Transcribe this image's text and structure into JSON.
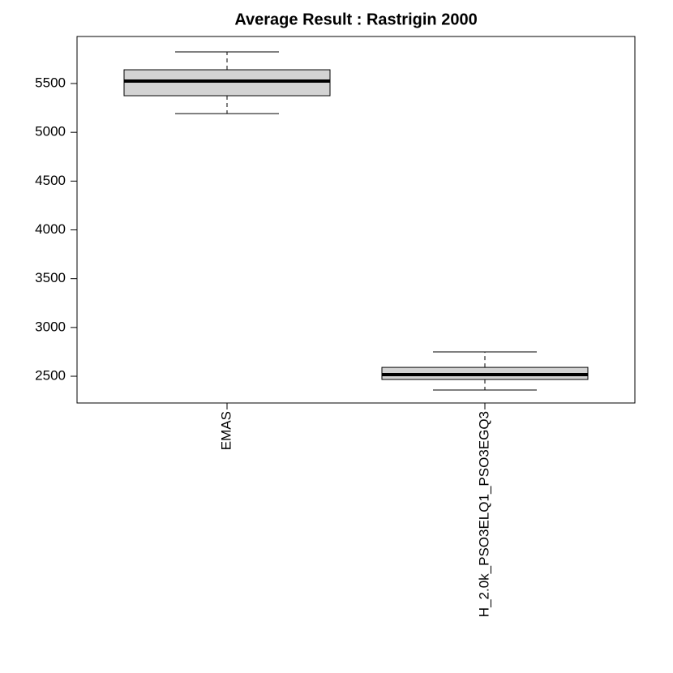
{
  "chart_data": {
    "type": "box",
    "title": "Average Result : Rastrigin 2000",
    "categories": [
      "EMAS",
      "H_2.0k_PSO3ELQ1_PSO3EGQ3"
    ],
    "boxes": [
      {
        "min": 5192,
        "q1": 5375,
        "median": 5525,
        "q3": 5641,
        "max": 5824
      },
      {
        "min": 2359,
        "q1": 2467,
        "median": 2517,
        "q3": 2591,
        "max": 2749
      }
    ],
    "color": "#d3d3d3",
    "ylim": [
      2226,
      5982
    ],
    "yticks": [
      2500,
      3000,
      3500,
      4000,
      4500,
      5000,
      5500
    ]
  }
}
